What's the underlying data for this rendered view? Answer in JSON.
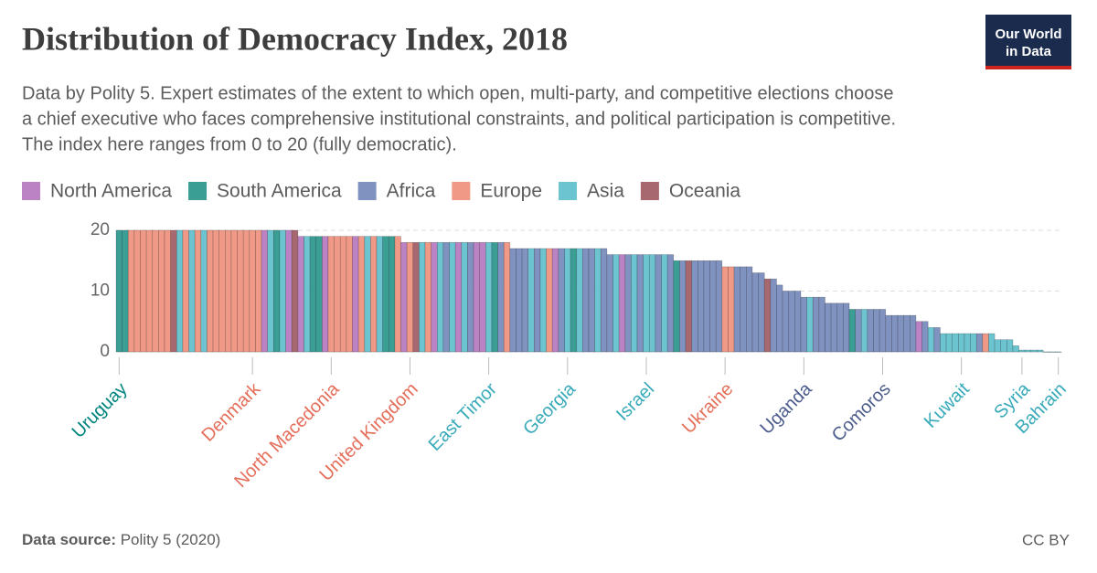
{
  "chart_data": {
    "type": "bar",
    "title": "Distribution of Democracy Index, 2018",
    "subtitle_lines": [
      "Data by Polity 5. Expert estimates of the extent to which open, multi-party, and competitive elections choose",
      "a chief executive who faces comprehensive institutional constraints, and political participation is competitive.",
      "The index here ranges from 0 to 20 (fully democratic)."
    ],
    "legend": [
      {
        "name": "North America",
        "color": "#bb82c4",
        "label_color": "#a2559c"
      },
      {
        "name": "South America",
        "color": "#3a9e95",
        "label_color": "#00847e"
      },
      {
        "name": "Africa",
        "color": "#8092c0",
        "label_color": "#4c5c8c"
      },
      {
        "name": "Europe",
        "color": "#f09986",
        "label_color": "#e56e5a"
      },
      {
        "name": "Asia",
        "color": "#6bc4cf",
        "label_color": "#38aaba"
      },
      {
        "name": "Oceania",
        "color": "#a8686f",
        "label_color": "#9a5058"
      }
    ],
    "categories": [
      "Uruguay",
      null,
      null,
      null,
      null,
      null,
      null,
      null,
      null,
      null,
      null,
      null,
      null,
      null,
      null,
      null,
      null,
      null,
      null,
      null,
      null,
      null,
      "Denmark",
      null,
      null,
      null,
      null,
      null,
      null,
      null,
      null,
      null,
      null,
      null,
      null,
      "North Macedonia",
      null,
      null,
      null,
      null,
      null,
      null,
      null,
      null,
      null,
      null,
      null,
      null,
      "United Kingdom",
      null,
      null,
      null,
      null,
      null,
      null,
      null,
      null,
      null,
      null,
      null,
      null,
      "East Timor",
      null,
      null,
      null,
      null,
      null,
      null,
      null,
      null,
      null,
      null,
      null,
      null,
      "Georgia",
      null,
      null,
      null,
      null,
      null,
      null,
      null,
      null,
      null,
      null,
      null,
      null,
      "Israel",
      null,
      null,
      null,
      null,
      null,
      null,
      null,
      null,
      null,
      null,
      null,
      null,
      "Ukraine",
      null,
      null,
      null,
      null,
      null,
      null,
      null,
      null,
      null,
      null,
      null,
      null,
      "Uganda",
      null,
      null,
      null,
      null,
      null,
      null,
      null,
      null,
      null,
      null,
      null,
      null,
      "Comoros",
      null,
      null,
      null,
      null,
      null,
      null,
      null,
      null,
      null,
      null,
      null,
      null,
      "Kuwait",
      null,
      null,
      null,
      null,
      null,
      null,
      null,
      null,
      null,
      "Syria",
      null,
      null,
      null,
      null,
      null,
      "Bahrain"
    ],
    "values": [
      20,
      20,
      20,
      20,
      20,
      20,
      20,
      20,
      20,
      20,
      20,
      20,
      20,
      20,
      20,
      20,
      20,
      20,
      20,
      20,
      20,
      20,
      20,
      20,
      20,
      20,
      20,
      20,
      20,
      20,
      19,
      19,
      19,
      19,
      19,
      19,
      19,
      19,
      19,
      19,
      19,
      19,
      19,
      19,
      19,
      19,
      19,
      18,
      18,
      18,
      18,
      18,
      18,
      18,
      18,
      18,
      18,
      18,
      18,
      18,
      18,
      18,
      18,
      18,
      18,
      17,
      17,
      17,
      17,
      17,
      17,
      17,
      17,
      17,
      17,
      17,
      17,
      17,
      17,
      17,
      17,
      16,
      16,
      16,
      16,
      16,
      16,
      16,
      16,
      16,
      16,
      16,
      15,
      15,
      15,
      15,
      15,
      15,
      15,
      15,
      14,
      14,
      14,
      14,
      14,
      13,
      13,
      12,
      12,
      11,
      10,
      10,
      10,
      9,
      9,
      9,
      9,
      8,
      8,
      8,
      8,
      7,
      7,
      7,
      7,
      7,
      7,
      6,
      6,
      6,
      6,
      6,
      5,
      5,
      4,
      4,
      3,
      3,
      3,
      3,
      3,
      3,
      3,
      3,
      3,
      2,
      2,
      2,
      1,
      0.3,
      0.3,
      0.3,
      0.3,
      0,
      0,
      0
    ],
    "colors": [
      "#3a9e95",
      "#3a9e95",
      "#f09986",
      "#f09986",
      "#f09986",
      "#f09986",
      "#f09986",
      "#f09986",
      "#f09986",
      "#a8686f",
      "#6bc4cf",
      "#f09986",
      "#6bc4cf",
      "#f09986",
      "#6bc4cf",
      "#f09986",
      "#f09986",
      "#f09986",
      "#f09986",
      "#f09986",
      "#f09986",
      "#f09986",
      "#f09986",
      "#f09986",
      "#bb82c4",
      "#6bc4cf",
      "#3a9e95",
      "#6bc4cf",
      "#bb82c4",
      "#a8686f",
      "#bb82c4",
      "#6bc4cf",
      "#3a9e95",
      "#3a9e95",
      "#bb82c4",
      "#f09986",
      "#f09986",
      "#f09986",
      "#f09986",
      "#bb82c4",
      "#f09986",
      "#6bc4cf",
      "#f09986",
      "#6bc4cf",
      "#3a9e95",
      "#3a9e95",
      "#f09986",
      "#bb82c4",
      "#f09986",
      "#a8686f",
      "#6bc4cf",
      "#f09986",
      "#bb82c4",
      "#6bc4cf",
      "#8092c0",
      "#6bc4cf",
      "#bb82c4",
      "#6bc4cf",
      "#8092c0",
      "#bb82c4",
      "#bb82c4",
      "#6bc4cf",
      "#3a9e95",
      "#8092c0",
      "#f09986",
      "#8092c0",
      "#8092c0",
      "#8092c0",
      "#6bc4cf",
      "#8092c0",
      "#6bc4cf",
      "#f09986",
      "#bb82c4",
      "#8092c0",
      "#6bc4cf",
      "#3a9e95",
      "#6bc4cf",
      "#8092c0",
      "#8092c0",
      "#6bc4cf",
      "#8092c0",
      "#8092c0",
      "#6bc4cf",
      "#bb82c4",
      "#8092c0",
      "#6bc4cf",
      "#8092c0",
      "#6bc4cf",
      "#6bc4cf",
      "#8092c0",
      "#6bc4cf",
      "#8092c0",
      "#3a9e95",
      "#8092c0",
      "#a8686f",
      "#8092c0",
      "#8092c0",
      "#8092c0",
      "#8092c0",
      "#8092c0",
      "#f09986",
      "#f09986",
      "#8092c0",
      "#8092c0",
      "#8092c0",
      "#8092c0",
      "#8092c0",
      "#a8686f",
      "#8092c0",
      "#8092c0",
      "#8092c0",
      "#8092c0",
      "#8092c0",
      "#8092c0",
      "#6bc4cf",
      "#8092c0",
      "#8092c0",
      "#8092c0",
      "#8092c0",
      "#8092c0",
      "#8092c0",
      "#3a9e95",
      "#8092c0",
      "#6bc4cf",
      "#8092c0",
      "#8092c0",
      "#8092c0",
      "#8092c0",
      "#8092c0",
      "#8092c0",
      "#8092c0",
      "#8092c0",
      "#bb82c4",
      "#8092c0",
      "#6bc4cf",
      "#8092c0",
      "#6bc4cf",
      "#6bc4cf",
      "#6bc4cf",
      "#6bc4cf",
      "#6bc4cf",
      "#6bc4cf",
      "#8092c0",
      "#f09986",
      "#6bc4cf",
      "#6bc4cf",
      "#6bc4cf",
      "#6bc4cf",
      "#6bc4cf",
      "#6bc4cf",
      "#6bc4cf",
      "#6bc4cf",
      "#6bc4cf",
      "#6bc4cf",
      "#6bc4cf",
      "#6bc4cf"
    ],
    "ylim": [
      0,
      20
    ],
    "yticks": [
      0,
      10,
      20
    ],
    "grid": true,
    "source_label": "Data source:",
    "source": "Polity 5 (2020)",
    "license": "CC BY",
    "logo_lines": [
      "Our World",
      "in Data"
    ]
  }
}
